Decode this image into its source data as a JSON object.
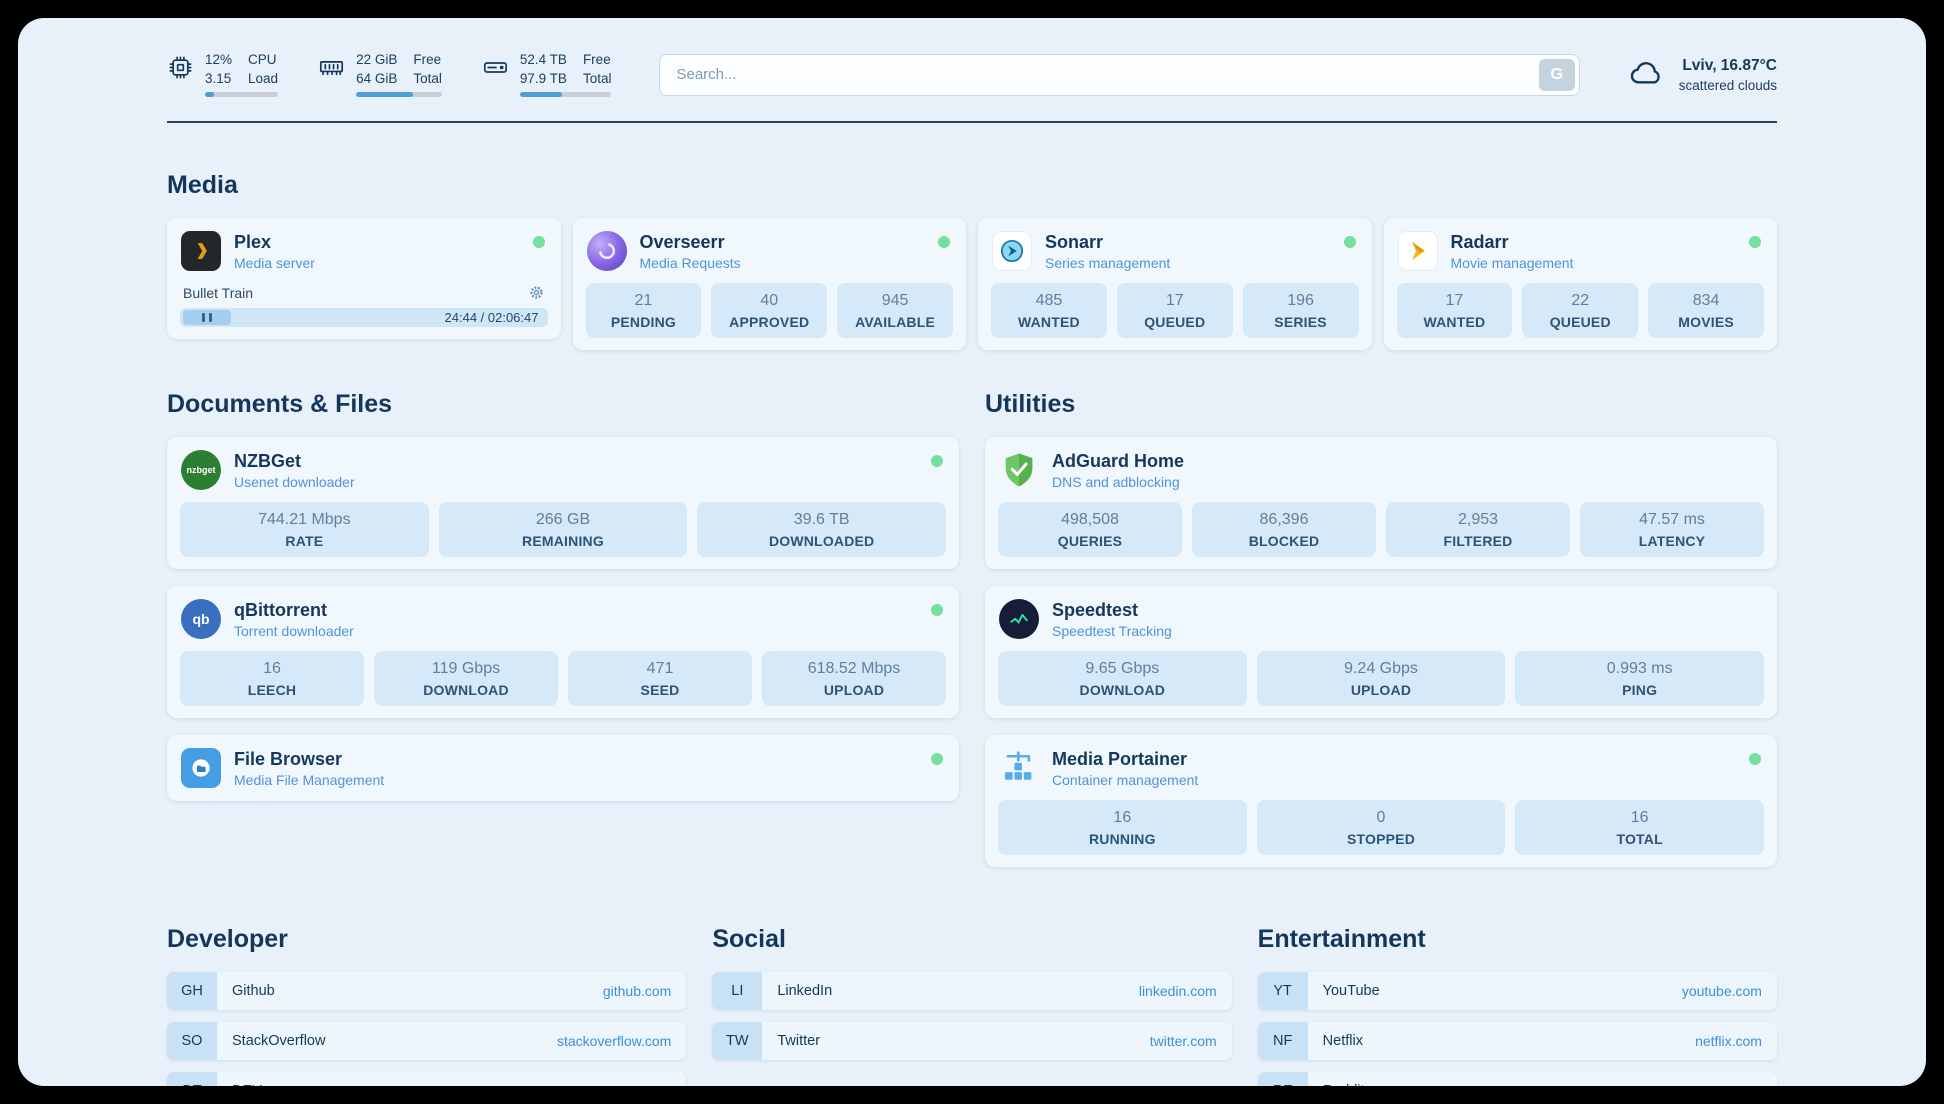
{
  "topbar": {
    "cpu": {
      "value_top": "12%",
      "value_bottom": "3.15",
      "label_top": "CPU",
      "label_bottom": "Load",
      "progress_percent": 12
    },
    "memory": {
      "value_top": "22 GiB",
      "value_bottom": "64 GiB",
      "label_top": "Free",
      "label_bottom": "Total",
      "progress_percent": 66
    },
    "storage": {
      "value_top": "52.4 TB",
      "value_bottom": "97.9 TB",
      "label_top": "Free",
      "label_bottom": "Total",
      "progress_percent": 46
    },
    "search": {
      "placeholder": "Search...",
      "button_label": "G"
    },
    "weather": {
      "location": "Lviv, 16.87°C",
      "description": "scattered clouds"
    }
  },
  "colors": {
    "accent_blue": "#4f9ed6",
    "status_green": "#74df9e",
    "link_blue": "#3e8ed6"
  },
  "sections": {
    "media": {
      "title": "Media",
      "services": [
        {
          "name": "Plex",
          "subtitle": "Media server",
          "icon": "plex-icon",
          "status_dot": true,
          "player": {
            "title": "Bullet Train",
            "current_time": "24:44",
            "total_time": "02:06:47",
            "progress_percent": 19
          }
        },
        {
          "name": "Overseerr",
          "subtitle": "Media Requests",
          "icon": "overseerr-icon",
          "status_dot": true,
          "stats": [
            {
              "value": "21",
              "label": "PENDING"
            },
            {
              "value": "40",
              "label": "APPROVED"
            },
            {
              "value": "945",
              "label": "AVAILABLE"
            }
          ]
        },
        {
          "name": "Sonarr",
          "subtitle": "Series management",
          "icon": "sonarr-icon",
          "status_dot": true,
          "stats": [
            {
              "value": "485",
              "label": "WANTED"
            },
            {
              "value": "17",
              "label": "QUEUED"
            },
            {
              "value": "196",
              "label": "SERIES"
            }
          ]
        },
        {
          "name": "Radarr",
          "subtitle": "Movie management",
          "icon": "radarr-icon",
          "status_dot": true,
          "stats": [
            {
              "value": "17",
              "label": "WANTED"
            },
            {
              "value": "22",
              "label": "QUEUED"
            },
            {
              "value": "834",
              "label": "MOVIES"
            }
          ]
        }
      ]
    },
    "documents": {
      "title": "Documents & Files",
      "services": [
        {
          "name": "NZBGet",
          "subtitle": "Usenet downloader",
          "icon": "nzbget-icon",
          "status_dot": true,
          "stats": [
            {
              "value": "744.21 Mbps",
              "label": "RATE"
            },
            {
              "value": "266 GB",
              "label": "REMAINING"
            },
            {
              "value": "39.6 TB",
              "label": "DOWNLOADED"
            }
          ]
        },
        {
          "name": "qBittorrent",
          "subtitle": "Torrent downloader",
          "icon": "qbittorrent-icon",
          "status_dot": true,
          "stats": [
            {
              "value": "16",
              "label": "LEECH"
            },
            {
              "value": "119 Gbps",
              "label": "DOWNLOAD"
            },
            {
              "value": "471",
              "label": "SEED"
            },
            {
              "value": "618.52 Mbps",
              "label": "UPLOAD"
            }
          ]
        },
        {
          "name": "File Browser",
          "subtitle": "Media File Management",
          "icon": "filebrowser-icon",
          "status_dot": true,
          "stats": []
        }
      ]
    },
    "utilities": {
      "title": "Utilities",
      "services": [
        {
          "name": "AdGuard Home",
          "subtitle": "DNS and adblocking",
          "icon": "adguard-icon",
          "status_dot": false,
          "stats": [
            {
              "value": "498,508",
              "label": "QUERIES"
            },
            {
              "value": "86,396",
              "label": "BLOCKED"
            },
            {
              "value": "2,953",
              "label": "FILTERED"
            },
            {
              "value": "47.57 ms",
              "label": "LATENCY"
            }
          ]
        },
        {
          "name": "Speedtest",
          "subtitle": "Speedtest Tracking",
          "icon": "speedtest-icon",
          "status_dot": false,
          "stats": [
            {
              "value": "9.65 Gbps",
              "label": "DOWNLOAD"
            },
            {
              "value": "9.24 Gbps",
              "label": "UPLOAD"
            },
            {
              "value": "0.993 ms",
              "label": "PING"
            }
          ]
        },
        {
          "name": "Media Portainer",
          "subtitle": "Container management",
          "icon": "portainer-icon",
          "status_dot": true,
          "stats": [
            {
              "value": "16",
              "label": "RUNNING"
            },
            {
              "value": "0",
              "label": "STOPPED"
            },
            {
              "value": "16",
              "label": "TOTAL"
            }
          ]
        }
      ]
    },
    "developer": {
      "title": "Developer",
      "links": [
        {
          "abbr": "GH",
          "name": "Github",
          "url": "github.com"
        },
        {
          "abbr": "SO",
          "name": "StackOverflow",
          "url": "stackoverflow.com"
        },
        {
          "abbr": "DT",
          "name": "DEV",
          "url": "dev.to"
        }
      ]
    },
    "social": {
      "title": "Social",
      "links": [
        {
          "abbr": "LI",
          "name": "LinkedIn",
          "url": "linkedin.com"
        },
        {
          "abbr": "TW",
          "name": "Twitter",
          "url": "twitter.com"
        }
      ]
    },
    "entertainment": {
      "title": "Entertainment",
      "links": [
        {
          "abbr": "YT",
          "name": "YouTube",
          "url": "youtube.com"
        },
        {
          "abbr": "NF",
          "name": "Netflix",
          "url": "netflix.com"
        },
        {
          "abbr": "RE",
          "name": "Reddit",
          "url": "reddit.com"
        }
      ]
    }
  }
}
